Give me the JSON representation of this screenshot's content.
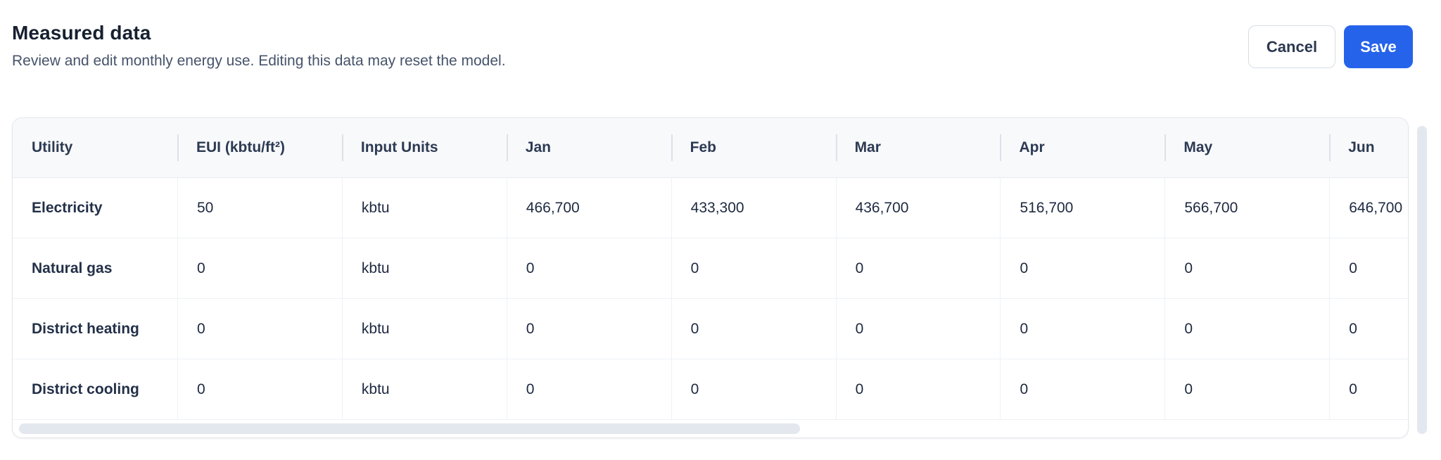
{
  "page": {
    "title": "Measured data",
    "subtitle": "Review and edit monthly energy use. Editing this data may reset the model."
  },
  "actions": {
    "cancel_label": "Cancel",
    "save_label": "Save"
  },
  "table": {
    "columns": [
      "Utility",
      "EUI (kbtu/ft²)",
      "Input Units",
      "Jan",
      "Feb",
      "Mar",
      "Apr",
      "May",
      "Jun"
    ],
    "rows": [
      {
        "cells": [
          "Electricity",
          "50",
          "kbtu",
          "466,700",
          "433,300",
          "436,700",
          "516,700",
          "566,700",
          "646,700"
        ]
      },
      {
        "cells": [
          "Natural gas",
          "0",
          "kbtu",
          "0",
          "0",
          "0",
          "0",
          "0",
          "0"
        ]
      },
      {
        "cells": [
          "District heating",
          "0",
          "kbtu",
          "0",
          "0",
          "0",
          "0",
          "0",
          "0"
        ]
      },
      {
        "cells": [
          "District cooling",
          "0",
          "kbtu",
          "0",
          "0",
          "0",
          "0",
          "0",
          "0"
        ]
      }
    ]
  },
  "colors": {
    "accent_blue": "#2563eb",
    "text_dark": "#1d2940",
    "text_muted": "#46536a",
    "header_bg": "#f8f9fb",
    "border": "#e2e6ed",
    "cell_border": "#eef1f5",
    "scrollbar_thumb": "#e3e8ee"
  }
}
